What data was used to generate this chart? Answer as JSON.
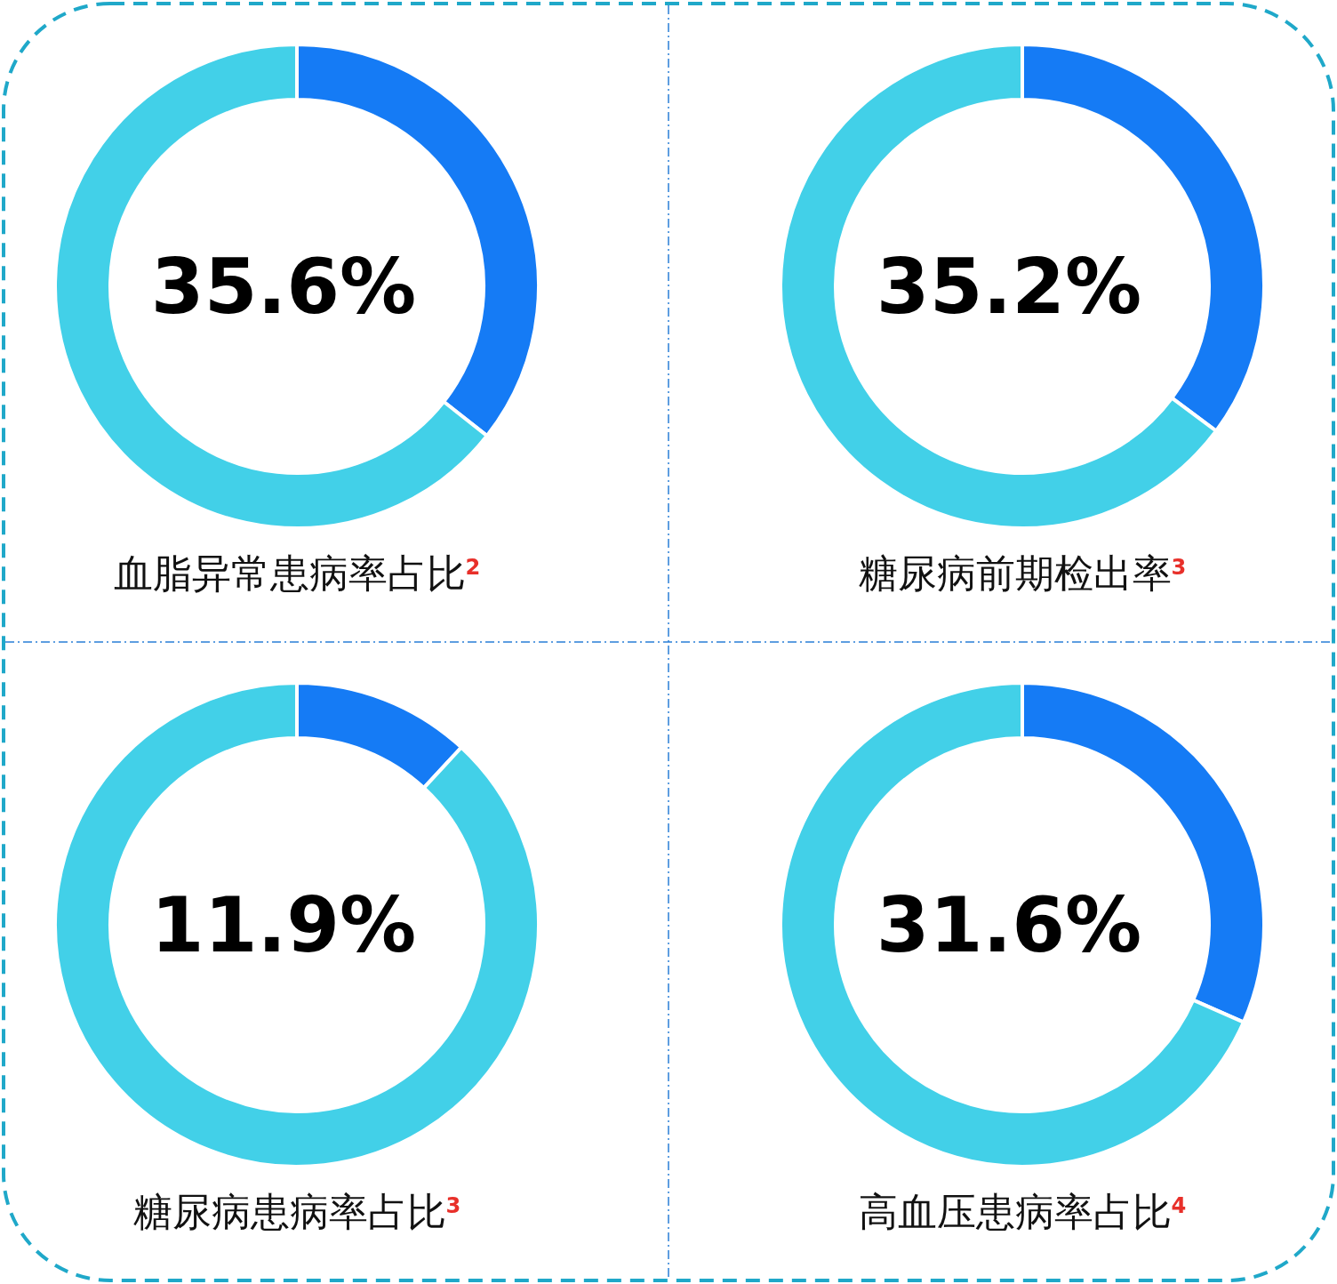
{
  "chart_data": [
    {
      "type": "donut",
      "title": "血脂异常患病率占比$^{2}$",
      "categories": [
        null,
        null
      ],
      "values": [
        35.6,
        64.4
      ],
      "colors": [
        "#157bf5",
        "#42d0e8"
      ],
      "annotations": [
        "35.6%"
      ]
    },
    {
      "type": "donut",
      "title": "糖尿病前期检出率$^{3}$",
      "categories": [
        null,
        null
      ],
      "values": [
        35.2,
        64.8
      ],
      "colors": [
        "#157bf5",
        "#42d0e8"
      ],
      "annotations": [
        "35.2%"
      ]
    },
    {
      "type": "donut",
      "title": "糖尿病患病率占比$^{3}$",
      "categories": [
        null,
        null
      ],
      "values": [
        11.9,
        88.1
      ],
      "colors": [
        "#157bf5",
        "#42d0e8"
      ],
      "annotations": [
        "11.9%"
      ]
    },
    {
      "type": "donut",
      "title": "高血压患病率占比$^{4}$",
      "categories": [
        null,
        null
      ],
      "values": [
        31.6,
        68.4
      ],
      "colors": [
        "#157bf5",
        "#42d0e8"
      ],
      "annotations": [
        "31.6%"
      ]
    }
  ]
}
